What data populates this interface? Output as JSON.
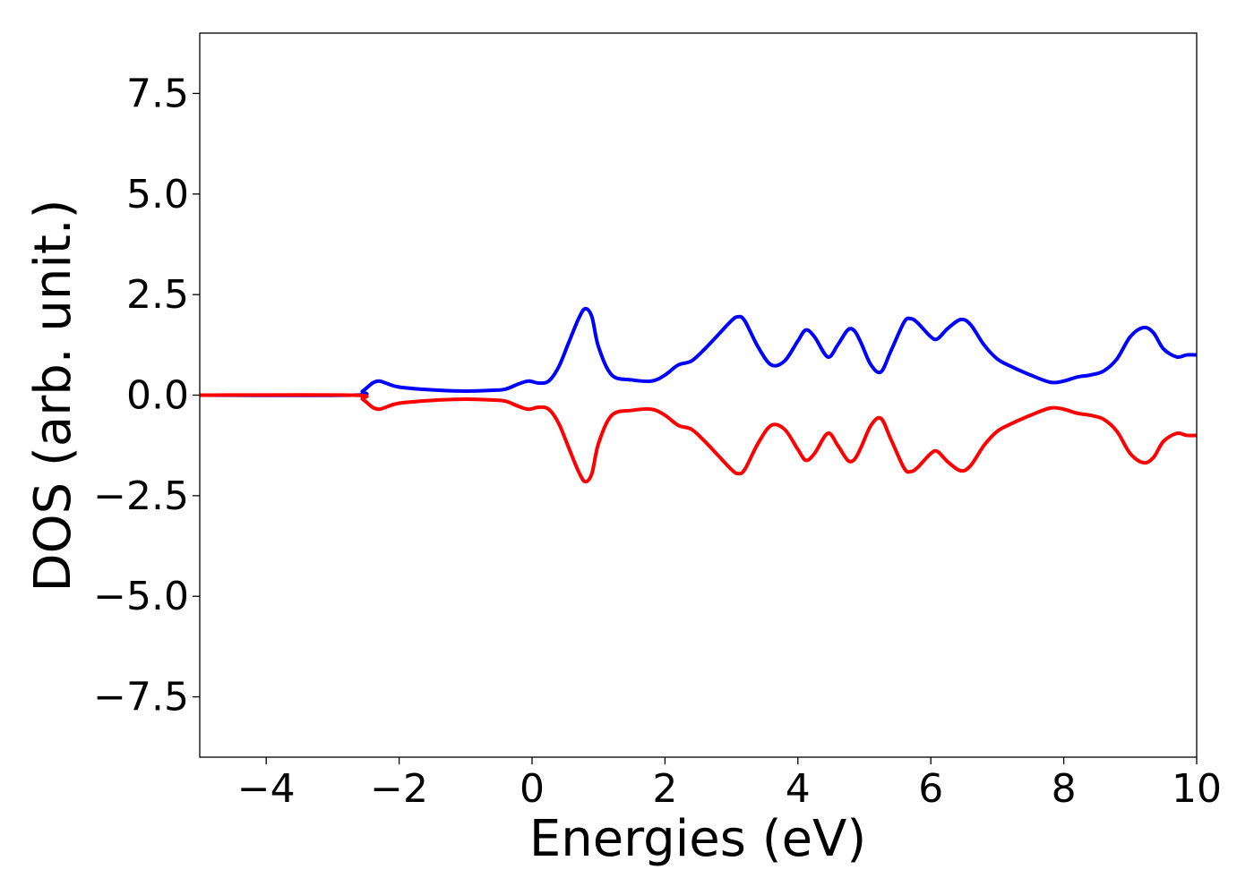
{
  "chart_data": {
    "type": "line",
    "title": "",
    "xlabel": "Energies (eV)",
    "ylabel": "DOS (arb. unit.)",
    "xlim": [
      -5,
      10
    ],
    "ylim": [
      -9,
      9
    ],
    "xticks": [
      -4,
      -2,
      0,
      2,
      4,
      6,
      8,
      10
    ],
    "xtick_labels": [
      "−4",
      "−2",
      "0",
      "2",
      "4",
      "6",
      "8",
      "10"
    ],
    "yticks": [
      7.5,
      5.0,
      2.5,
      0.0,
      -2.5,
      -5.0,
      -7.5
    ],
    "ytick_labels": [
      "7.5",
      "5.0",
      "2.5",
      "0.0",
      "−2.5",
      "−5.0",
      "−7.5"
    ],
    "grid": false,
    "legend": "none",
    "series": [
      {
        "color": "#0000ff",
        "x": [
          -5,
          -2.7,
          -2.55,
          -2.4,
          -2.3,
          -2.2,
          -2.0,
          -1.5,
          -1.0,
          -0.6,
          -0.4,
          -0.2,
          -0.05,
          0.1,
          0.25,
          0.4,
          0.55,
          0.7,
          0.8,
          0.9,
          1.0,
          1.2,
          1.5,
          1.8,
          2.0,
          2.2,
          2.4,
          2.6,
          2.8,
          3.0,
          3.1,
          3.2,
          3.4,
          3.6,
          3.8,
          4.0,
          4.12,
          4.25,
          4.45,
          4.6,
          4.75,
          4.85,
          4.95,
          5.1,
          5.25,
          5.4,
          5.6,
          5.7,
          5.8,
          6.0,
          6.1,
          6.25,
          6.45,
          6.6,
          6.8,
          7.0,
          7.2,
          7.5,
          7.8,
          8.0,
          8.2,
          8.4,
          8.6,
          8.8,
          9.0,
          9.2,
          9.35,
          9.5,
          9.7,
          9.85,
          10.0
        ],
        "y": [
          0.0,
          0.0,
          0.1,
          0.3,
          0.35,
          0.3,
          0.2,
          0.13,
          0.1,
          0.12,
          0.15,
          0.28,
          0.35,
          0.3,
          0.35,
          0.7,
          1.3,
          1.9,
          2.15,
          1.95,
          1.2,
          0.5,
          0.38,
          0.35,
          0.5,
          0.75,
          0.85,
          1.15,
          1.5,
          1.85,
          1.95,
          1.85,
          1.2,
          0.75,
          0.85,
          1.35,
          1.62,
          1.45,
          0.95,
          1.25,
          1.62,
          1.6,
          1.3,
          0.75,
          0.58,
          1.1,
          1.82,
          1.9,
          1.8,
          1.45,
          1.4,
          1.65,
          1.88,
          1.75,
          1.25,
          0.9,
          0.72,
          0.5,
          0.32,
          0.35,
          0.45,
          0.5,
          0.6,
          0.9,
          1.45,
          1.68,
          1.55,
          1.15,
          0.95,
          1.0,
          1.0
        ]
      },
      {
        "color": "#ff0000",
        "x": [
          -5,
          -2.7,
          -2.55,
          -2.4,
          -2.3,
          -2.2,
          -2.0,
          -1.5,
          -1.0,
          -0.6,
          -0.4,
          -0.2,
          -0.05,
          0.1,
          0.25,
          0.4,
          0.55,
          0.7,
          0.8,
          0.9,
          1.0,
          1.2,
          1.5,
          1.8,
          2.0,
          2.2,
          2.4,
          2.6,
          2.8,
          3.0,
          3.1,
          3.2,
          3.4,
          3.6,
          3.8,
          4.0,
          4.12,
          4.25,
          4.45,
          4.6,
          4.75,
          4.85,
          4.95,
          5.1,
          5.25,
          5.4,
          5.6,
          5.7,
          5.8,
          6.0,
          6.1,
          6.25,
          6.45,
          6.6,
          6.8,
          7.0,
          7.2,
          7.5,
          7.8,
          8.0,
          8.2,
          8.4,
          8.6,
          8.8,
          9.0,
          9.2,
          9.35,
          9.5,
          9.7,
          9.85,
          10.0
        ],
        "y": [
          0.0,
          0.0,
          -0.1,
          -0.3,
          -0.35,
          -0.3,
          -0.2,
          -0.13,
          -0.1,
          -0.12,
          -0.15,
          -0.28,
          -0.35,
          -0.3,
          -0.35,
          -0.7,
          -1.3,
          -1.9,
          -2.15,
          -1.95,
          -1.2,
          -0.5,
          -0.38,
          -0.35,
          -0.5,
          -0.75,
          -0.85,
          -1.15,
          -1.5,
          -1.85,
          -1.95,
          -1.85,
          -1.2,
          -0.75,
          -0.85,
          -1.35,
          -1.62,
          -1.45,
          -0.95,
          -1.25,
          -1.62,
          -1.6,
          -1.3,
          -0.75,
          -0.58,
          -1.1,
          -1.82,
          -1.9,
          -1.8,
          -1.45,
          -1.4,
          -1.65,
          -1.88,
          -1.75,
          -1.25,
          -0.9,
          -0.72,
          -0.5,
          -0.32,
          -0.35,
          -0.45,
          -0.5,
          -0.6,
          -0.9,
          -1.45,
          -1.68,
          -1.55,
          -1.15,
          -0.95,
          -1.0,
          -1.0
        ]
      }
    ]
  }
}
